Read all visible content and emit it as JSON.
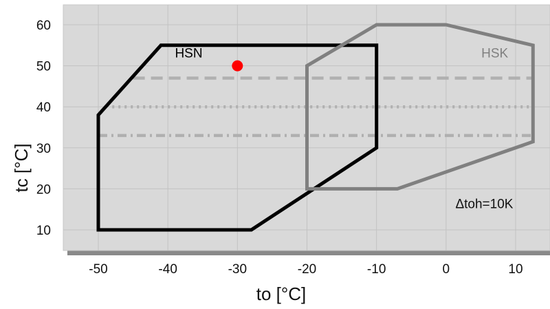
{
  "chart_data": {
    "type": "line",
    "title": "",
    "xlabel": "to [°C]",
    "ylabel": "tc [°C]",
    "xlim": [
      -55,
      15
    ],
    "ylim": [
      5,
      65
    ],
    "x_ticks": [
      -50,
      -40,
      -30,
      -20,
      -10,
      0,
      10
    ],
    "y_ticks": [
      10,
      20,
      30,
      40,
      50,
      60
    ],
    "x_tick_labels": [
      "-50",
      "-40",
      "-30",
      "-20",
      "-10",
      "0",
      "10"
    ],
    "y_tick_labels": [
      "10",
      "20",
      "30",
      "40",
      "50",
      "60"
    ],
    "grid": true,
    "background": "#d9d9d9",
    "series": [
      {
        "name": "HSN",
        "color": "#000000",
        "style": "solid",
        "closed": true,
        "points": [
          [
            -50,
            10
          ],
          [
            -28,
            10
          ],
          [
            -10,
            30
          ],
          [
            -10,
            55
          ],
          [
            -41,
            55
          ],
          [
            -50,
            38
          ]
        ]
      },
      {
        "name": "HSK",
        "color": "#808080",
        "style": "solid",
        "closed": true,
        "points": [
          [
            -20,
            20
          ],
          [
            -7,
            20
          ],
          [
            12.5,
            31.5
          ],
          [
            12.5,
            55
          ],
          [
            0,
            60
          ],
          [
            -10,
            60
          ],
          [
            -20,
            50
          ]
        ]
      },
      {
        "name": "",
        "color": "#b0b0b0",
        "style": "dashed",
        "points": [
          [
            -45,
            47
          ],
          [
            12.5,
            47
          ]
        ]
      },
      {
        "name": "",
        "color": "#b0b0b0",
        "style": "dotted",
        "points": [
          [
            -48,
            40
          ],
          [
            12.5,
            40
          ]
        ]
      },
      {
        "name": "",
        "color": "#b0b0b0",
        "style": "dashdot",
        "points": [
          [
            -50,
            33
          ],
          [
            12.5,
            33
          ]
        ]
      }
    ],
    "markers": [
      {
        "x": -30,
        "y": 50,
        "color": "#ff0000"
      }
    ],
    "annotations": [
      {
        "text": "HSN",
        "x": -37,
        "y": 52,
        "color": "#000000"
      },
      {
        "text": "HSK",
        "x": 7,
        "y": 52,
        "color": "#808080"
      },
      {
        "text": "Δtoh=10K",
        "x": 5.5,
        "y": 15.3,
        "color": "#111111"
      }
    ]
  }
}
